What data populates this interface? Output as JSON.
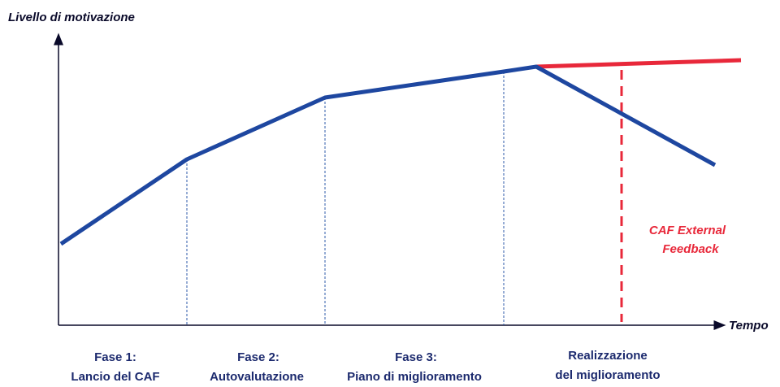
{
  "axes": {
    "y_label": "Livello di motivazione",
    "x_label": "Tempo"
  },
  "phases": [
    {
      "lines": [
        "Fase 1:",
        "Lancio del CAF"
      ]
    },
    {
      "lines": [
        "Fase 2:",
        "Autovalutazione"
      ]
    },
    {
      "lines": [
        "Fase 3:",
        "Piano di miglioramento"
      ]
    },
    {
      "lines": [
        "Realizzazione",
        "del miglioramento"
      ]
    }
  ],
  "annotation": {
    "lines": [
      "CAF External",
      "Feedback"
    ]
  }
}
